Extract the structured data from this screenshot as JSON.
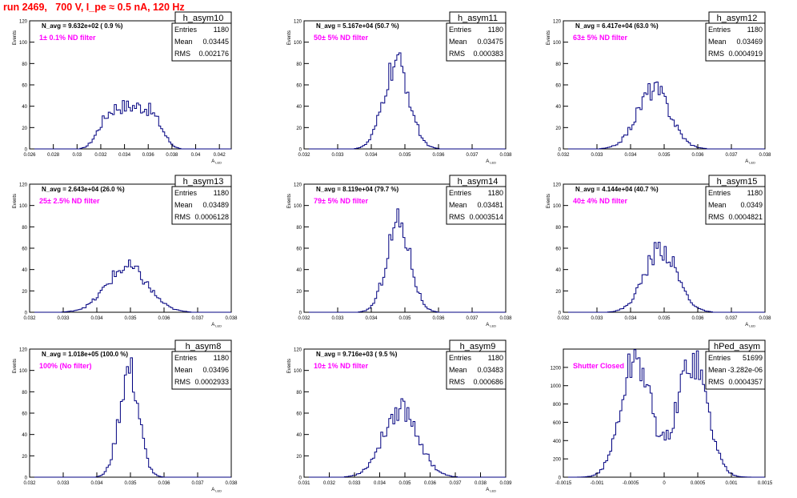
{
  "run_title": "run 2469,   700 V, I_pe ≈ 0.5 nA, 120 Hz",
  "colors": {
    "histogram": "#000080",
    "axis": "#000000",
    "filter_label": "#ff00ff",
    "run_title": "#ff0000",
    "background": "#ffffff"
  },
  "chart_data": [
    {
      "type": "histogram",
      "name": "h_asym10",
      "ylabel": "Events",
      "xlabel": "A_LED",
      "xlim": [
        0.026,
        0.043
      ],
      "ylim": [
        0,
        120
      ],
      "xticks": [
        0.026,
        0.028,
        0.03,
        0.032,
        0.034,
        0.036,
        0.038,
        0.04,
        0.042
      ],
      "xtick_labels": [
        "0.026",
        "0.028",
        "0.03",
        "0.032",
        "0.034",
        "0.036",
        "0.038",
        "0.04",
        "0.042"
      ],
      "yticks": [
        0,
        20,
        40,
        60,
        80,
        100,
        120
      ],
      "stats": {
        "entries": "1180",
        "mean": "0.03445",
        "rms": "0.002176"
      },
      "navg_label": "N_avg = 9.632e+02 ( 0.9 %)",
      "filter_label": "1± 0.1% ND filter",
      "shape": "wide",
      "peaks": [
        0.0345
      ],
      "width": 0.0022,
      "height": 40
    },
    {
      "type": "histogram",
      "name": "h_asym11",
      "ylabel": "Events",
      "xlabel": "A_LED",
      "xlim": [
        0.032,
        0.038
      ],
      "ylim": [
        0,
        120
      ],
      "xticks": [
        0.032,
        0.033,
        0.034,
        0.035,
        0.036,
        0.037,
        0.038
      ],
      "xtick_labels": [
        "0.032",
        "0.033",
        "0.034",
        "0.035",
        "0.036",
        "0.037",
        "0.038"
      ],
      "yticks": [
        0,
        20,
        40,
        60,
        80,
        100,
        120
      ],
      "stats": {
        "entries": "1180",
        "mean": "0.03475",
        "rms": "0.000383"
      },
      "navg_label": "N_avg = 5.167e+04 (50.7 %)",
      "filter_label": "50± 5% ND filter",
      "shape": "normal",
      "peaks": [
        0.03475
      ],
      "width": 0.00038,
      "height": 80
    },
    {
      "type": "histogram",
      "name": "h_asym12",
      "ylabel": "Events",
      "xlabel": "A_LED",
      "xlim": [
        0.032,
        0.038
      ],
      "ylim": [
        0,
        120
      ],
      "xticks": [
        0.032,
        0.033,
        0.034,
        0.035,
        0.036,
        0.037,
        0.038
      ],
      "xtick_labels": [
        "0.032",
        "0.033",
        "0.034",
        "0.035",
        "0.036",
        "0.037",
        "0.038"
      ],
      "yticks": [
        0,
        20,
        40,
        60,
        80,
        100,
        120
      ],
      "stats": {
        "entries": "1180",
        "mean": "0.03469",
        "rms": "0.0004919"
      },
      "navg_label": "N_avg = 6.417e+04 (63.0 %)",
      "filter_label": "63± 5% ND filter",
      "shape": "normal",
      "peaks": [
        0.03469
      ],
      "width": 0.00049,
      "height": 56
    },
    {
      "type": "histogram",
      "name": "h_asym13",
      "ylabel": "Events",
      "xlabel": "A_LED",
      "xlim": [
        0.032,
        0.038
      ],
      "ylim": [
        0,
        120
      ],
      "xticks": [
        0.032,
        0.033,
        0.034,
        0.035,
        0.036,
        0.037,
        0.038
      ],
      "xtick_labels": [
        "0.032",
        "0.033",
        "0.034",
        "0.035",
        "0.036",
        "0.037",
        "0.038"
      ],
      "yticks": [
        0,
        20,
        40,
        60,
        80,
        100,
        120
      ],
      "stats": {
        "entries": "1180",
        "mean": "0.03489",
        "rms": "0.0006128"
      },
      "navg_label": "N_avg = 2.643e+04 (26.0 %)",
      "filter_label": "25± 2.5% ND filter",
      "shape": "normal",
      "peaks": [
        0.0349
      ],
      "width": 0.00061,
      "height": 42
    },
    {
      "type": "histogram",
      "name": "h_asym14",
      "ylabel": "Events",
      "xlabel": "A_LED",
      "xlim": [
        0.032,
        0.038
      ],
      "ylim": [
        0,
        120
      ],
      "xticks": [
        0.032,
        0.033,
        0.034,
        0.035,
        0.036,
        0.037,
        0.038
      ],
      "xtick_labels": [
        "0.032",
        "0.033",
        "0.034",
        "0.035",
        "0.036",
        "0.037",
        "0.038"
      ],
      "yticks": [
        0,
        20,
        40,
        60,
        80,
        100,
        120
      ],
      "stats": {
        "entries": "1180",
        "mean": "0.03481",
        "rms": "0.0003514"
      },
      "navg_label": "N_avg = 8.119e+04 (79.7 %)",
      "filter_label": "79± 5% ND filter",
      "shape": "normal",
      "peaks": [
        0.03481
      ],
      "width": 0.00035,
      "height": 85
    },
    {
      "type": "histogram",
      "name": "h_asym15",
      "ylabel": "Events",
      "xlabel": "A_LED",
      "xlim": [
        0.032,
        0.038
      ],
      "ylim": [
        0,
        120
      ],
      "xticks": [
        0.032,
        0.033,
        0.034,
        0.035,
        0.036,
        0.037,
        0.038
      ],
      "xtick_labels": [
        "0.032",
        "0.033",
        "0.034",
        "0.035",
        "0.036",
        "0.037",
        "0.038"
      ],
      "yticks": [
        0,
        20,
        40,
        60,
        80,
        100,
        120
      ],
      "stats": {
        "entries": "1180",
        "mean": "0.0349",
        "rms": "0.0004821"
      },
      "navg_label": "N_avg = 4.144e+04 (40.7 %)",
      "filter_label": "40± 4% ND filter",
      "shape": "normal",
      "peaks": [
        0.0349
      ],
      "width": 0.00048,
      "height": 60
    },
    {
      "type": "histogram",
      "name": "h_asym8",
      "ylabel": "Events",
      "xlabel": "A_LED",
      "xlim": [
        0.032,
        0.038
      ],
      "ylim": [
        0,
        120
      ],
      "xticks": [
        0.032,
        0.033,
        0.034,
        0.035,
        0.036,
        0.037,
        0.038
      ],
      "xtick_labels": [
        "0.032",
        "0.033",
        "0.034",
        "0.035",
        "0.036",
        "0.037",
        "0.038"
      ],
      "yticks": [
        0,
        20,
        40,
        60,
        80,
        100,
        120
      ],
      "stats": {
        "entries": "1180",
        "mean": "0.03496",
        "rms": "0.0002933"
      },
      "navg_label": "N_avg = 1.018e+05 (100.0 %)",
      "filter_label": "100% (No filter)",
      "shape": "normal",
      "peaks": [
        0.03496
      ],
      "width": 0.00029,
      "height": 100
    },
    {
      "type": "histogram",
      "name": "h_asym9",
      "ylabel": "Events",
      "xlabel": "A_LED",
      "xlim": [
        0.031,
        0.039
      ],
      "ylim": [
        0,
        120
      ],
      "xticks": [
        0.031,
        0.032,
        0.033,
        0.034,
        0.035,
        0.036,
        0.037,
        0.038,
        0.039
      ],
      "xtick_labels": [
        "0.031",
        "0.032",
        "0.033",
        "0.034",
        "0.035",
        "0.036",
        "0.037",
        "0.038",
        "0.039"
      ],
      "yticks": [
        0,
        20,
        40,
        60,
        80,
        100,
        120
      ],
      "stats": {
        "entries": "1180",
        "mean": "0.03483",
        "rms": "0.000686"
      },
      "navg_label": "N_avg = 9.716e+03 ( 9.5 %)",
      "filter_label": "10± 1% ND filter",
      "shape": "normal",
      "peaks": [
        0.03483
      ],
      "width": 0.00069,
      "height": 65
    },
    {
      "type": "histogram",
      "name": "hPed_asym",
      "ylabel": "",
      "xlabel": "",
      "xlim": [
        -0.0015,
        0.0015
      ],
      "ylim": [
        0,
        1400
      ],
      "xticks": [
        -0.0015,
        -0.001,
        -0.0005,
        0,
        0.0005,
        0.001,
        0.0015
      ],
      "xtick_labels": [
        "-0.0015",
        "-0.001",
        "-0.0005",
        "0",
        "0.0005",
        "0.001",
        "0.0015"
      ],
      "yticks": [
        0,
        200,
        400,
        600,
        800,
        1000,
        1200
      ],
      "stats": {
        "entries": "51699",
        "mean": "-3.282e-06",
        "rms": "0.0004357"
      },
      "navg_label": "",
      "filter_label": "Shutter Closed",
      "shape": "double",
      "peaks": [
        -0.00042,
        0.00042
      ],
      "width": 0.00022,
      "height": 1300
    }
  ]
}
